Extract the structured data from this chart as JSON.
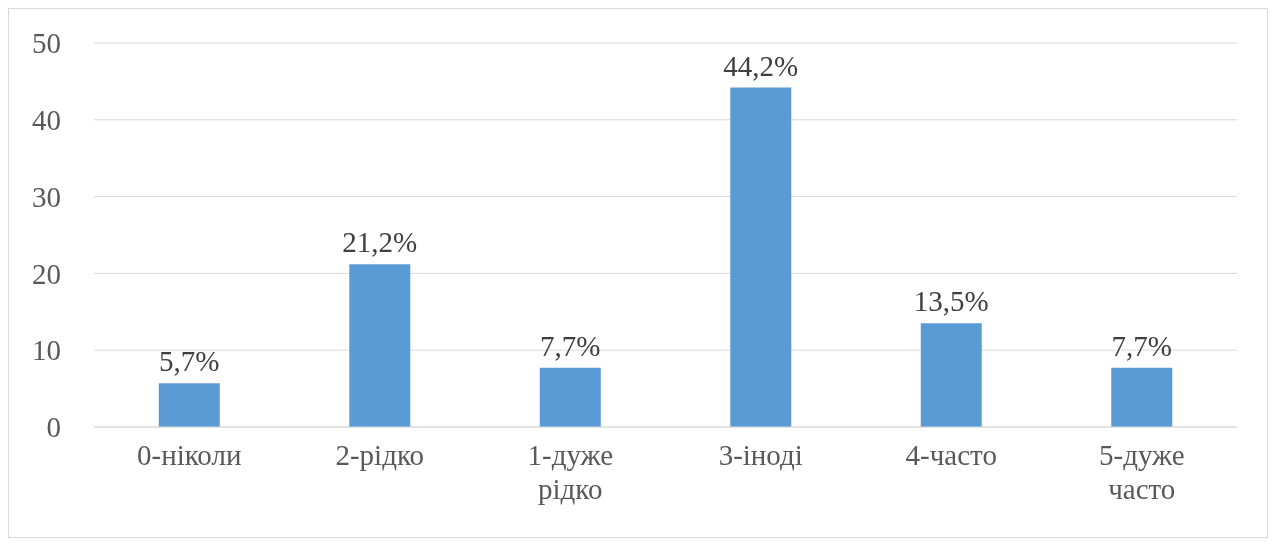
{
  "chart_data": {
    "type": "bar",
    "categories": [
      "0-ніколи",
      "2-рідко",
      "1-дуже рідко",
      "3-іноді",
      "4-часто",
      "5-дуже часто"
    ],
    "values": [
      5.7,
      21.2,
      7.7,
      44.2,
      13.5,
      7.7
    ],
    "value_labels": [
      "5,7%",
      "21,2%",
      "7,7%",
      "44,2%",
      "13,5%",
      "7,7%"
    ],
    "color": "#5b9bd5",
    "ylim": [
      0,
      50
    ],
    "yticks": [
      0,
      10,
      20,
      30,
      40,
      50
    ],
    "grid": "y"
  }
}
